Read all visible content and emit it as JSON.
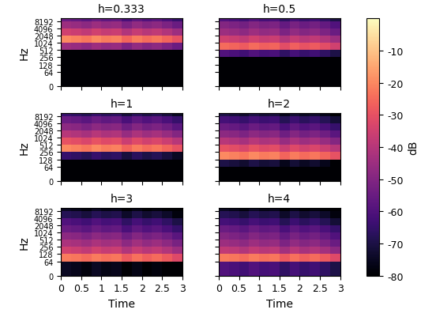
{
  "chart_data": [
    {
      "type": "heatmap",
      "title": "h=0.333",
      "y_label": "Hz",
      "tick_labels": "y",
      "log": "y",
      "x_edges": [
        0,
        0.25,
        0.5,
        0.75,
        1,
        1.25,
        1.5,
        1.75,
        2,
        2.25,
        2.5,
        2.75,
        3
      ],
      "y_edges": [
        0,
        64,
        128,
        256,
        512,
        1024,
        2048,
        4096,
        8192,
        11025
      ],
      "xlim": [
        0,
        3
      ],
      "xticks": [
        0,
        0.5,
        1,
        1.5,
        2,
        2.5,
        3
      ],
      "ylim": [
        0,
        11025
      ],
      "yticks": [
        0,
        64,
        128,
        256,
        512,
        1024,
        2048,
        4096,
        8192
      ],
      "cells": [
        [
          -80,
          -80,
          -80,
          -80,
          -80,
          -80,
          -80,
          -80,
          -80,
          -80,
          -80,
          -80
        ],
        [
          -80,
          -80,
          -80,
          -80,
          -80,
          -80,
          -80,
          -80,
          -80,
          -80,
          -80,
          -80
        ],
        [
          -80,
          -80,
          -80,
          -80,
          -80,
          -80,
          -80,
          -80,
          -80,
          -80,
          -80,
          -80
        ],
        [
          -80,
          -80,
          -80,
          -80,
          -80,
          -80,
          -80,
          -80,
          -80,
          -80,
          -80,
          -80
        ],
        [
          -45,
          -46,
          -48,
          -45,
          -47,
          -46,
          -51,
          -47,
          -50,
          -48,
          -51,
          -55
        ],
        [
          -20,
          -21,
          -23,
          -20,
          -22,
          -21,
          -26,
          -22,
          -25,
          -23,
          -26,
          -30
        ],
        [
          -35,
          -36,
          -38,
          -35,
          -37,
          -36,
          -41,
          -37,
          -40,
          -38,
          -41,
          -45
        ],
        [
          -45,
          -46,
          -48,
          -45,
          -47,
          -46,
          -51,
          -47,
          -50,
          -48,
          -51,
          -55
        ],
        [
          -55,
          -56,
          -58,
          -55,
          -57,
          -56,
          -61,
          -57,
          -60,
          -58,
          -61,
          -65
        ]
      ]
    },
    {
      "type": "heatmap",
      "title": "h=0.5",
      "tick_labels": false,
      "log": "y",
      "x_edges": [
        0,
        0.25,
        0.5,
        0.75,
        1,
        1.25,
        1.5,
        1.75,
        2,
        2.25,
        2.5,
        2.75,
        3
      ],
      "y_edges": [
        0,
        64,
        128,
        256,
        512,
        1024,
        2048,
        4096,
        8192,
        11025
      ],
      "xlim": [
        0,
        3
      ],
      "xticks": [
        0,
        0.5,
        1,
        1.5,
        2,
        2.5,
        3
      ],
      "ylim": [
        0,
        11025
      ],
      "yticks": [
        0,
        64,
        128,
        256,
        512,
        1024,
        2048,
        4096,
        8192
      ],
      "cells": [
        [
          -80,
          -80,
          -80,
          -80,
          -80,
          -80,
          -80,
          -80,
          -80,
          -80,
          -80,
          -80
        ],
        [
          -80,
          -80,
          -80,
          -80,
          -80,
          -80,
          -80,
          -80,
          -80,
          -80,
          -80,
          -80
        ],
        [
          -80,
          -80,
          -80,
          -80,
          -80,
          -80,
          -80,
          -80,
          -80,
          -80,
          -80,
          -80
        ],
        [
          -60,
          -61,
          -63,
          -60,
          -62,
          -61,
          -66,
          -62,
          -65,
          -63,
          -66,
          -70
        ],
        [
          -25,
          -26,
          -28,
          -25,
          -27,
          -26,
          -31,
          -27,
          -30,
          -28,
          -31,
          -35
        ],
        [
          -35,
          -36,
          -38,
          -35,
          -37,
          -36,
          -41,
          -37,
          -40,
          -38,
          -41,
          -45
        ],
        [
          -45,
          -46,
          -48,
          -45,
          -47,
          -46,
          -51,
          -47,
          -50,
          -48,
          -51,
          -55
        ],
        [
          -50,
          -51,
          -53,
          -50,
          -52,
          -51,
          -56,
          -52,
          -55,
          -53,
          -56,
          -60
        ],
        [
          -60,
          -61,
          -63,
          -60,
          -62,
          -61,
          -66,
          -62,
          -65,
          -63,
          -66,
          -70
        ]
      ]
    },
    {
      "type": "heatmap",
      "title": "h=1",
      "y_label": "Hz",
      "tick_labels": "y",
      "log": "y",
      "x_edges": [
        0,
        0.25,
        0.5,
        0.75,
        1,
        1.25,
        1.5,
        1.75,
        2,
        2.25,
        2.5,
        2.75,
        3
      ],
      "y_edges": [
        0,
        64,
        128,
        256,
        512,
        1024,
        2048,
        4096,
        8192,
        11025
      ],
      "xlim": [
        0,
        3
      ],
      "xticks": [
        0,
        0.5,
        1,
        1.5,
        2,
        2.5,
        3
      ],
      "ylim": [
        0,
        11025
      ],
      "yticks": [
        0,
        64,
        128,
        256,
        512,
        1024,
        2048,
        4096,
        8192
      ],
      "cells": [
        [
          -80,
          -80,
          -80,
          -80,
          -80,
          -80,
          -80,
          -80,
          -80,
          -80,
          -80,
          -80
        ],
        [
          -80,
          -80,
          -80,
          -80,
          -80,
          -80,
          -80,
          -80,
          -80,
          -80,
          -80,
          -80
        ],
        [
          -65,
          -66,
          -68,
          -65,
          -67,
          -66,
          -71,
          -67,
          -70,
          -68,
          -71,
          -75
        ],
        [
          -20,
          -21,
          -23,
          -20,
          -22,
          -21,
          -26,
          -22,
          -25,
          -23,
          -26,
          -30
        ],
        [
          -30,
          -31,
          -33,
          -30,
          -32,
          -31,
          -36,
          -32,
          -35,
          -33,
          -36,
          -40
        ],
        [
          -40,
          -41,
          -43,
          -40,
          -42,
          -41,
          -46,
          -42,
          -45,
          -43,
          -46,
          -50
        ],
        [
          -48,
          -49,
          -51,
          -48,
          -50,
          -49,
          -54,
          -50,
          -53,
          -51,
          -54,
          -58
        ],
        [
          -55,
          -56,
          -58,
          -55,
          -57,
          -56,
          -61,
          -57,
          -60,
          -58,
          -61,
          -65
        ],
        [
          -65,
          -66,
          -68,
          -65,
          -67,
          -66,
          -71,
          -67,
          -70,
          -68,
          -71,
          -75
        ]
      ]
    },
    {
      "type": "heatmap",
      "title": "h=2",
      "tick_labels": false,
      "log": "y",
      "x_edges": [
        0,
        0.25,
        0.5,
        0.75,
        1,
        1.25,
        1.5,
        1.75,
        2,
        2.25,
        2.5,
        2.75,
        3
      ],
      "y_edges": [
        0,
        64,
        128,
        256,
        512,
        1024,
        2048,
        4096,
        8192,
        11025
      ],
      "xlim": [
        0,
        3
      ],
      "xticks": [
        0,
        0.5,
        1,
        1.5,
        2,
        2.5,
        3
      ],
      "ylim": [
        0,
        11025
      ],
      "yticks": [
        0,
        64,
        128,
        256,
        512,
        1024,
        2048,
        4096,
        8192
      ],
      "cells": [
        [
          -80,
          -80,
          -80,
          -80,
          -80,
          -80,
          -80,
          -80,
          -80,
          -80,
          -80,
          -80
        ],
        [
          -70,
          -71,
          -73,
          -70,
          -72,
          -71,
          -76,
          -72,
          -75,
          -73,
          -76,
          -80
        ],
        [
          -20,
          -21,
          -23,
          -20,
          -22,
          -21,
          -26,
          -22,
          -25,
          -23,
          -26,
          -30
        ],
        [
          -30,
          -31,
          -33,
          -30,
          -32,
          -31,
          -36,
          -32,
          -35,
          -33,
          -36,
          -40
        ],
        [
          -40,
          -41,
          -43,
          -40,
          -42,
          -41,
          -46,
          -42,
          -45,
          -43,
          -46,
          -50
        ],
        [
          -48,
          -49,
          -51,
          -48,
          -50,
          -49,
          -54,
          -50,
          -53,
          -51,
          -54,
          -58
        ],
        [
          -55,
          -56,
          -58,
          -55,
          -57,
          -56,
          -61,
          -57,
          -60,
          -58,
          -61,
          -65
        ],
        [
          -62,
          -63,
          -65,
          -62,
          -64,
          -63,
          -68,
          -64,
          -67,
          -65,
          -68,
          -72
        ],
        [
          -70,
          -71,
          -73,
          -70,
          -72,
          -71,
          -76,
          -72,
          -75,
          -73,
          -76,
          -80
        ]
      ]
    },
    {
      "type": "heatmap",
      "title": "h=3",
      "x_label": "Time",
      "y_label": "Hz",
      "log": "y",
      "x_edges": [
        0,
        0.25,
        0.5,
        0.75,
        1,
        1.25,
        1.5,
        1.75,
        2,
        2.25,
        2.5,
        2.75,
        3
      ],
      "y_edges": [
        0,
        64,
        128,
        256,
        512,
        1024,
        2048,
        4096,
        8192,
        11025
      ],
      "xlim": [
        0,
        3
      ],
      "xticks": [
        0,
        0.5,
        1,
        1.5,
        2,
        2.5,
        3
      ],
      "ylim": [
        0,
        11025
      ],
      "yticks": [
        0,
        64,
        128,
        256,
        512,
        1024,
        2048,
        4096,
        8192
      ],
      "cells": [
        [
          -75,
          -76,
          -78,
          -75,
          -77,
          -76,
          -80,
          -77,
          -80,
          -78,
          -80,
          -80
        ],
        [
          -22,
          -23,
          -25,
          -22,
          -24,
          -23,
          -28,
          -24,
          -27,
          -25,
          -28,
          -32
        ],
        [
          -35,
          -36,
          -38,
          -35,
          -37,
          -36,
          -41,
          -37,
          -40,
          -38,
          -41,
          -45
        ],
        [
          -42,
          -43,
          -45,
          -42,
          -44,
          -43,
          -48,
          -44,
          -47,
          -45,
          -48,
          -52
        ],
        [
          -48,
          -49,
          -51,
          -48,
          -50,
          -49,
          -54,
          -50,
          -53,
          -51,
          -54,
          -58
        ],
        [
          -55,
          -56,
          -58,
          -55,
          -57,
          -56,
          -61,
          -57,
          -60,
          -58,
          -61,
          -65
        ],
        [
          -60,
          -61,
          -63,
          -60,
          -62,
          -61,
          -66,
          -62,
          -65,
          -63,
          -66,
          -70
        ],
        [
          -68,
          -69,
          -71,
          -68,
          -70,
          -69,
          -74,
          -70,
          -73,
          -71,
          -74,
          -78
        ],
        [
          -75,
          -76,
          -78,
          -75,
          -77,
          -76,
          -80,
          -77,
          -80,
          -78,
          -80,
          -80
        ]
      ]
    },
    {
      "type": "heatmap",
      "title": "h=4",
      "x_label": "Time",
      "tick_labels": "x",
      "log": "y",
      "x_edges": [
        0,
        0.25,
        0.5,
        0.75,
        1,
        1.25,
        1.5,
        1.75,
        2,
        2.25,
        2.5,
        2.75,
        3
      ],
      "y_edges": [
        0,
        64,
        128,
        256,
        512,
        1024,
        2048,
        4096,
        8192,
        11025
      ],
      "xlim": [
        0,
        3
      ],
      "xticks": [
        0,
        0.5,
        1,
        1.5,
        2,
        2.5,
        3
      ],
      "ylim": [
        0,
        11025
      ],
      "yticks": [
        0,
        64,
        128,
        256,
        512,
        1024,
        2048,
        4096,
        8192
      ],
      "cells": [
        [
          -60,
          -61,
          -63,
          -60,
          -62,
          -61,
          -66,
          -62,
          -65,
          -63,
          -66,
          -70
        ],
        [
          -22,
          -23,
          -25,
          -22,
          -24,
          -23,
          -28,
          -24,
          -27,
          -25,
          -28,
          -32
        ],
        [
          -38,
          -39,
          -41,
          -38,
          -40,
          -39,
          -44,
          -40,
          -43,
          -41,
          -44,
          -48
        ],
        [
          -45,
          -46,
          -48,
          -45,
          -47,
          -46,
          -51,
          -47,
          -50,
          -48,
          -51,
          -55
        ],
        [
          -50,
          -51,
          -53,
          -50,
          -52,
          -51,
          -56,
          -52,
          -55,
          -53,
          -56,
          -60
        ],
        [
          -55,
          -56,
          -58,
          -55,
          -57,
          -56,
          -61,
          -57,
          -60,
          -58,
          -61,
          -65
        ],
        [
          -62,
          -63,
          -65,
          -62,
          -64,
          -63,
          -68,
          -64,
          -67,
          -65,
          -68,
          -72
        ],
        [
          -68,
          -69,
          -71,
          -68,
          -70,
          -69,
          -74,
          -70,
          -73,
          -71,
          -74,
          -78
        ],
        [
          -75,
          -76,
          -78,
          -75,
          -77,
          -76,
          -80,
          -77,
          -80,
          -78,
          -80,
          -80
        ]
      ]
    }
  ],
  "colorbar": {
    "label": "dB",
    "range": [
      -80,
      0
    ],
    "ticks": [
      -10,
      -20,
      -30,
      -40,
      -50,
      -60,
      -70,
      -80
    ]
  }
}
